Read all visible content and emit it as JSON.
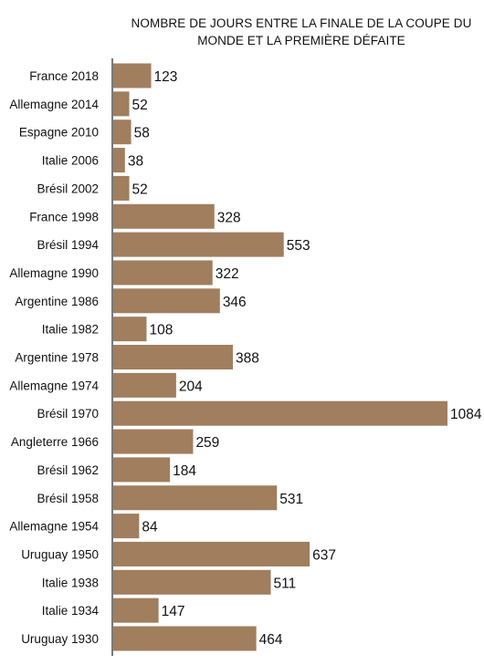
{
  "chart_data": {
    "type": "bar",
    "orientation": "horizontal",
    "title_lines": [
      "NOMBRE DE JOURS ENTRE LA FINALE DE LA COUPE DU",
      "MONDE ET LA PREMIÈRE DÉFAITE"
    ],
    "categories": [
      "France 2018",
      "Allemagne 2014",
      "Espagne 2010",
      "Italie 2006",
      "Brésil 2002",
      "France 1998",
      "Brésil 1994",
      "Allemagne 1990",
      "Argentine 1986",
      "Italie 1982",
      "Argentine 1978",
      "Allemagne 1974",
      "Brésil 1970",
      "Angleterre 1966",
      "Brésil 1962",
      "Brésil 1958",
      "Allemagne 1954",
      "Uruguay 1950",
      "Italie 1938",
      "Italie 1934",
      "Uruguay 1930"
    ],
    "values": [
      123,
      52,
      58,
      38,
      52,
      328,
      553,
      322,
      346,
      108,
      388,
      204,
      1084,
      259,
      184,
      531,
      84,
      637,
      511,
      147,
      464
    ],
    "xlim": [
      0,
      1084
    ],
    "grid": false,
    "legend": "none",
    "colors": {
      "bar": "#a07e5e",
      "axis": "#222222",
      "text": "#111111"
    }
  }
}
